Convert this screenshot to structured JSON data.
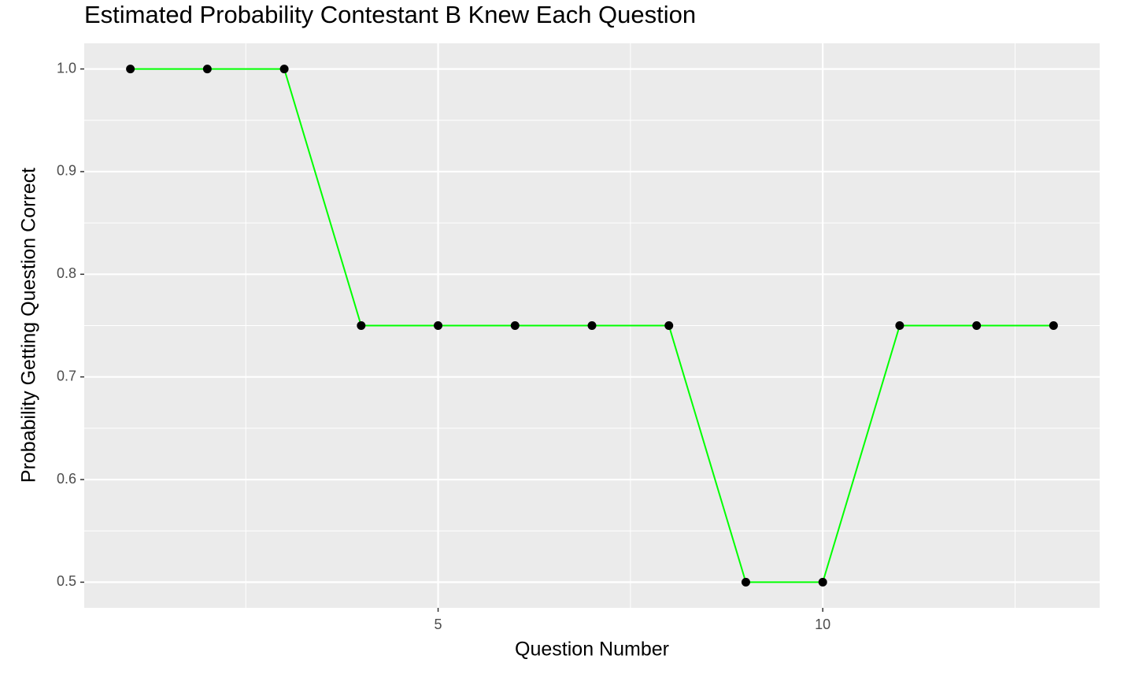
{
  "chart_data": {
    "type": "line",
    "title": "Estimated Probability Contestant B Knew Each Question",
    "x_label": "Question Number",
    "y_label": "Probability Getting Question Correct",
    "x": [
      1,
      2,
      3,
      4,
      5,
      6,
      7,
      8,
      9,
      10,
      11,
      12,
      13
    ],
    "series": [
      {
        "color": "#00ff00",
        "values": [
          1.0,
          1.0,
          1.0,
          0.75,
          0.75,
          0.75,
          0.75,
          0.75,
          0.5,
          0.5,
          0.75,
          0.75,
          0.75
        ]
      }
    ],
    "point_color": "#000000",
    "xlim": [
      0.4,
      13.6
    ],
    "ylim": [
      0.475,
      1.025
    ],
    "xticks": [
      5,
      10
    ],
    "yticks": [
      {
        "value": 0.5,
        "label": "0.5"
      },
      {
        "value": 0.6,
        "label": "0.6"
      },
      {
        "value": 0.7,
        "label": "0.7"
      },
      {
        "value": 0.8,
        "label": "0.8"
      },
      {
        "value": 0.9,
        "label": "0.9"
      },
      {
        "value": 1.0,
        "label": "1.0"
      }
    ],
    "grid": true
  }
}
